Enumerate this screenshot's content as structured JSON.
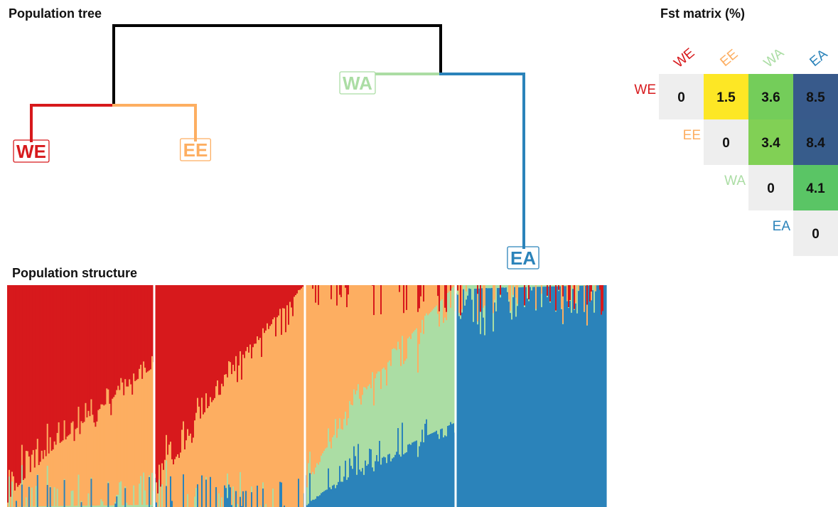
{
  "titles": {
    "tree": "Population tree",
    "structure": "Population structure",
    "fst": "Fst matrix (%)"
  },
  "colors": {
    "WE": "#d7191c",
    "EE": "#fdae61",
    "WA": "#abdda4",
    "EA": "#2b83ba",
    "tree_backbone": "#000000",
    "diag_cell": "#eeeeee"
  },
  "populations": [
    "WE",
    "EE",
    "WA",
    "EA"
  ],
  "tree": {
    "leaves": [
      "WE",
      "EE",
      "WA",
      "EA"
    ],
    "topology": "((WE,EE),(WA,EA))"
  },
  "chart_data": [
    {
      "type": "heatmap",
      "title": "Fst matrix (%)",
      "rows": [
        "WE",
        "EE",
        "WA",
        "EA"
      ],
      "cols": [
        "WE",
        "EE",
        "WA",
        "EA"
      ],
      "layout": "upper-triangle",
      "colormap": "viridis",
      "values": [
        [
          0,
          1.5,
          3.6,
          8.5
        ],
        [
          null,
          0,
          3.4,
          8.4
        ],
        [
          null,
          null,
          0,
          4.1
        ],
        [
          null,
          null,
          null,
          0
        ]
      ]
    },
    {
      "type": "area",
      "title": "Population structure",
      "stacked": true,
      "components": [
        "WE",
        "EE",
        "WA",
        "EA"
      ],
      "groups": [
        {
          "name": "WE",
          "ancestry_start": {
            "WE": 0.98,
            "EE": 0.02,
            "WA": 0.0,
            "EA": 0.0
          },
          "ancestry_end": {
            "WE": 0.37,
            "EE": 0.62,
            "WA": 0.01,
            "EA": 0.0
          }
        },
        {
          "name": "EE",
          "ancestry_start": {
            "WE": 0.98,
            "EE": 0.02,
            "WA": 0.0,
            "EA": 0.0
          },
          "ancestry_end": {
            "WE": 0.0,
            "EE": 1.0,
            "WA": 0.0,
            "EA": 0.0
          }
        },
        {
          "name": "WA",
          "ancestry_start": {
            "WE": 0.0,
            "EE": 0.92,
            "WA": 0.08,
            "EA": 0.0
          },
          "ancestry_end": {
            "WE": 0.0,
            "EE": 0.0,
            "WA": 0.62,
            "EA": 0.38
          }
        },
        {
          "name": "EA",
          "ancestry_start": {
            "WE": 0.0,
            "EE": 0.0,
            "WA": 0.02,
            "EA": 0.98
          },
          "ancestry_end": {
            "WE": 0.0,
            "EE": 0.0,
            "WA": 0.0,
            "EA": 1.0
          }
        }
      ]
    }
  ]
}
